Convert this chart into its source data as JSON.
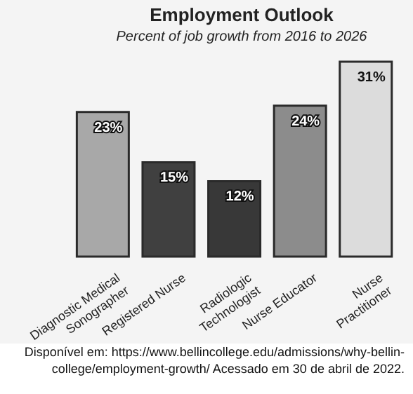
{
  "chart_data": {
    "type": "bar",
    "title": "Employment Outlook",
    "subtitle": "Percent of job growth from 2016 to 2026",
    "categories": [
      "Diagnostic Medical\nSonographer",
      "Registered Nurse",
      "Radiologic\nTechnologist",
      "Nurse Educator",
      "Nurse\nPractitioner"
    ],
    "values": [
      23,
      15,
      12,
      24,
      31
    ],
    "colors": [
      "#a8a8a8",
      "#404040",
      "#383838",
      "#8c8c8c",
      "#dcdcdc"
    ],
    "value_labels": [
      "23%",
      "15%",
      "12%",
      "24%",
      "31%"
    ],
    "grid": false,
    "legend": false,
    "annotations": [
      "Disponível em: https://www.bellincollege.edu/admissions/why-bellin-college/employment-growth/ Acessado em 30 de abril de 2022."
    ]
  }
}
